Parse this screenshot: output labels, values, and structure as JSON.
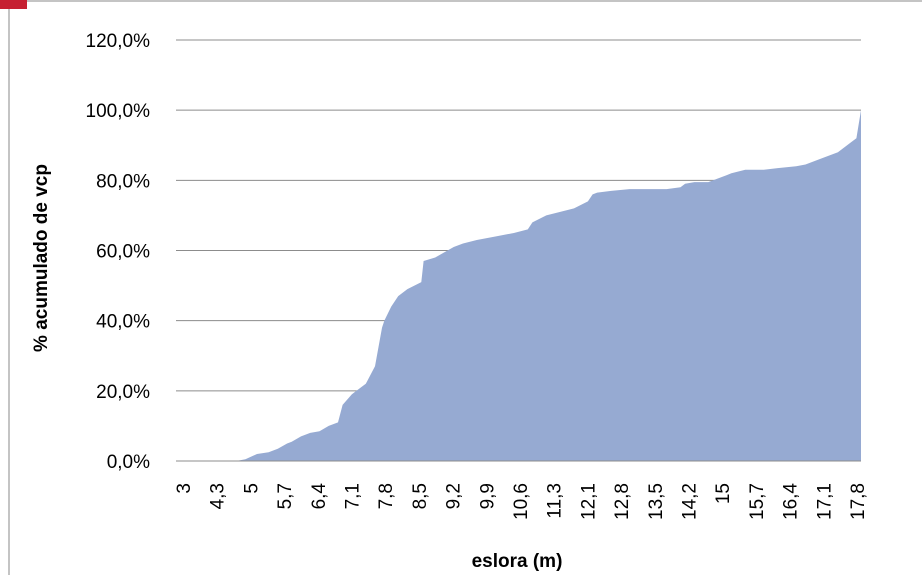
{
  "chart_data": {
    "type": "area",
    "title": "",
    "xlabel": "eslora (m)",
    "ylabel": "% acumulado de vcp",
    "ylim": [
      0,
      120
    ],
    "yticks": [
      "0,0%",
      "20,0%",
      "40,0%",
      "60,0%",
      "80,0%",
      "100,0%",
      "120,0%"
    ],
    "xlim": [
      3,
      17.8
    ],
    "xticks": [
      "3",
      "4,3",
      "5",
      "5,7",
      "6,4",
      "7,1",
      "7,8",
      "8,5",
      "9,2",
      "9,9",
      "10,6",
      "11,3",
      "12,1",
      "12,8",
      "13,5",
      "14,2",
      "15",
      "15,7",
      "16,4",
      "17,1",
      "17,8"
    ],
    "grid": true,
    "legend": "none",
    "fill_color": "#96aad2",
    "series": [
      {
        "x": [
          3,
          4.3,
          4.5,
          4.75,
          5,
          5.2,
          5.4,
          5.5,
          5.7,
          5.9,
          6.1,
          6.3,
          6.5,
          6.6,
          6.8,
          7.0,
          7.1,
          7.3,
          7.45,
          7.5,
          7.65,
          7.8,
          8.0,
          8.3,
          8.35,
          8.6,
          9.0,
          9.2,
          9.5,
          9.9,
          10.3,
          10.6,
          10.7,
          11.0,
          11.3,
          11.6,
          11.9,
          12.0,
          12.1,
          12.4,
          12.8,
          13.2,
          13.6,
          13.9,
          14.0,
          14.2,
          14.5,
          14.7,
          14.9,
          15.0,
          15.3,
          15.7,
          16.0,
          16.4,
          16.6,
          16.9,
          17.1,
          17.3,
          17.5,
          17.6,
          17.7,
          17.8
        ],
        "y": [
          0,
          0,
          0.5,
          2,
          2.5,
          3.5,
          5,
          5.5,
          7,
          8,
          8.5,
          10,
          11,
          16,
          19,
          21,
          22,
          27,
          38,
          40,
          44,
          47,
          49,
          51,
          57,
          58,
          61,
          62,
          63,
          64,
          65,
          66,
          68,
          70,
          71,
          72,
          74,
          76,
          76.5,
          77,
          77.5,
          77.5,
          77.5,
          78,
          79,
          79.5,
          79.5,
          80.5,
          81.5,
          82,
          83,
          83,
          83.5,
          84,
          84.5,
          86,
          87,
          88,
          90,
          91,
          92,
          100
        ]
      }
    ]
  }
}
